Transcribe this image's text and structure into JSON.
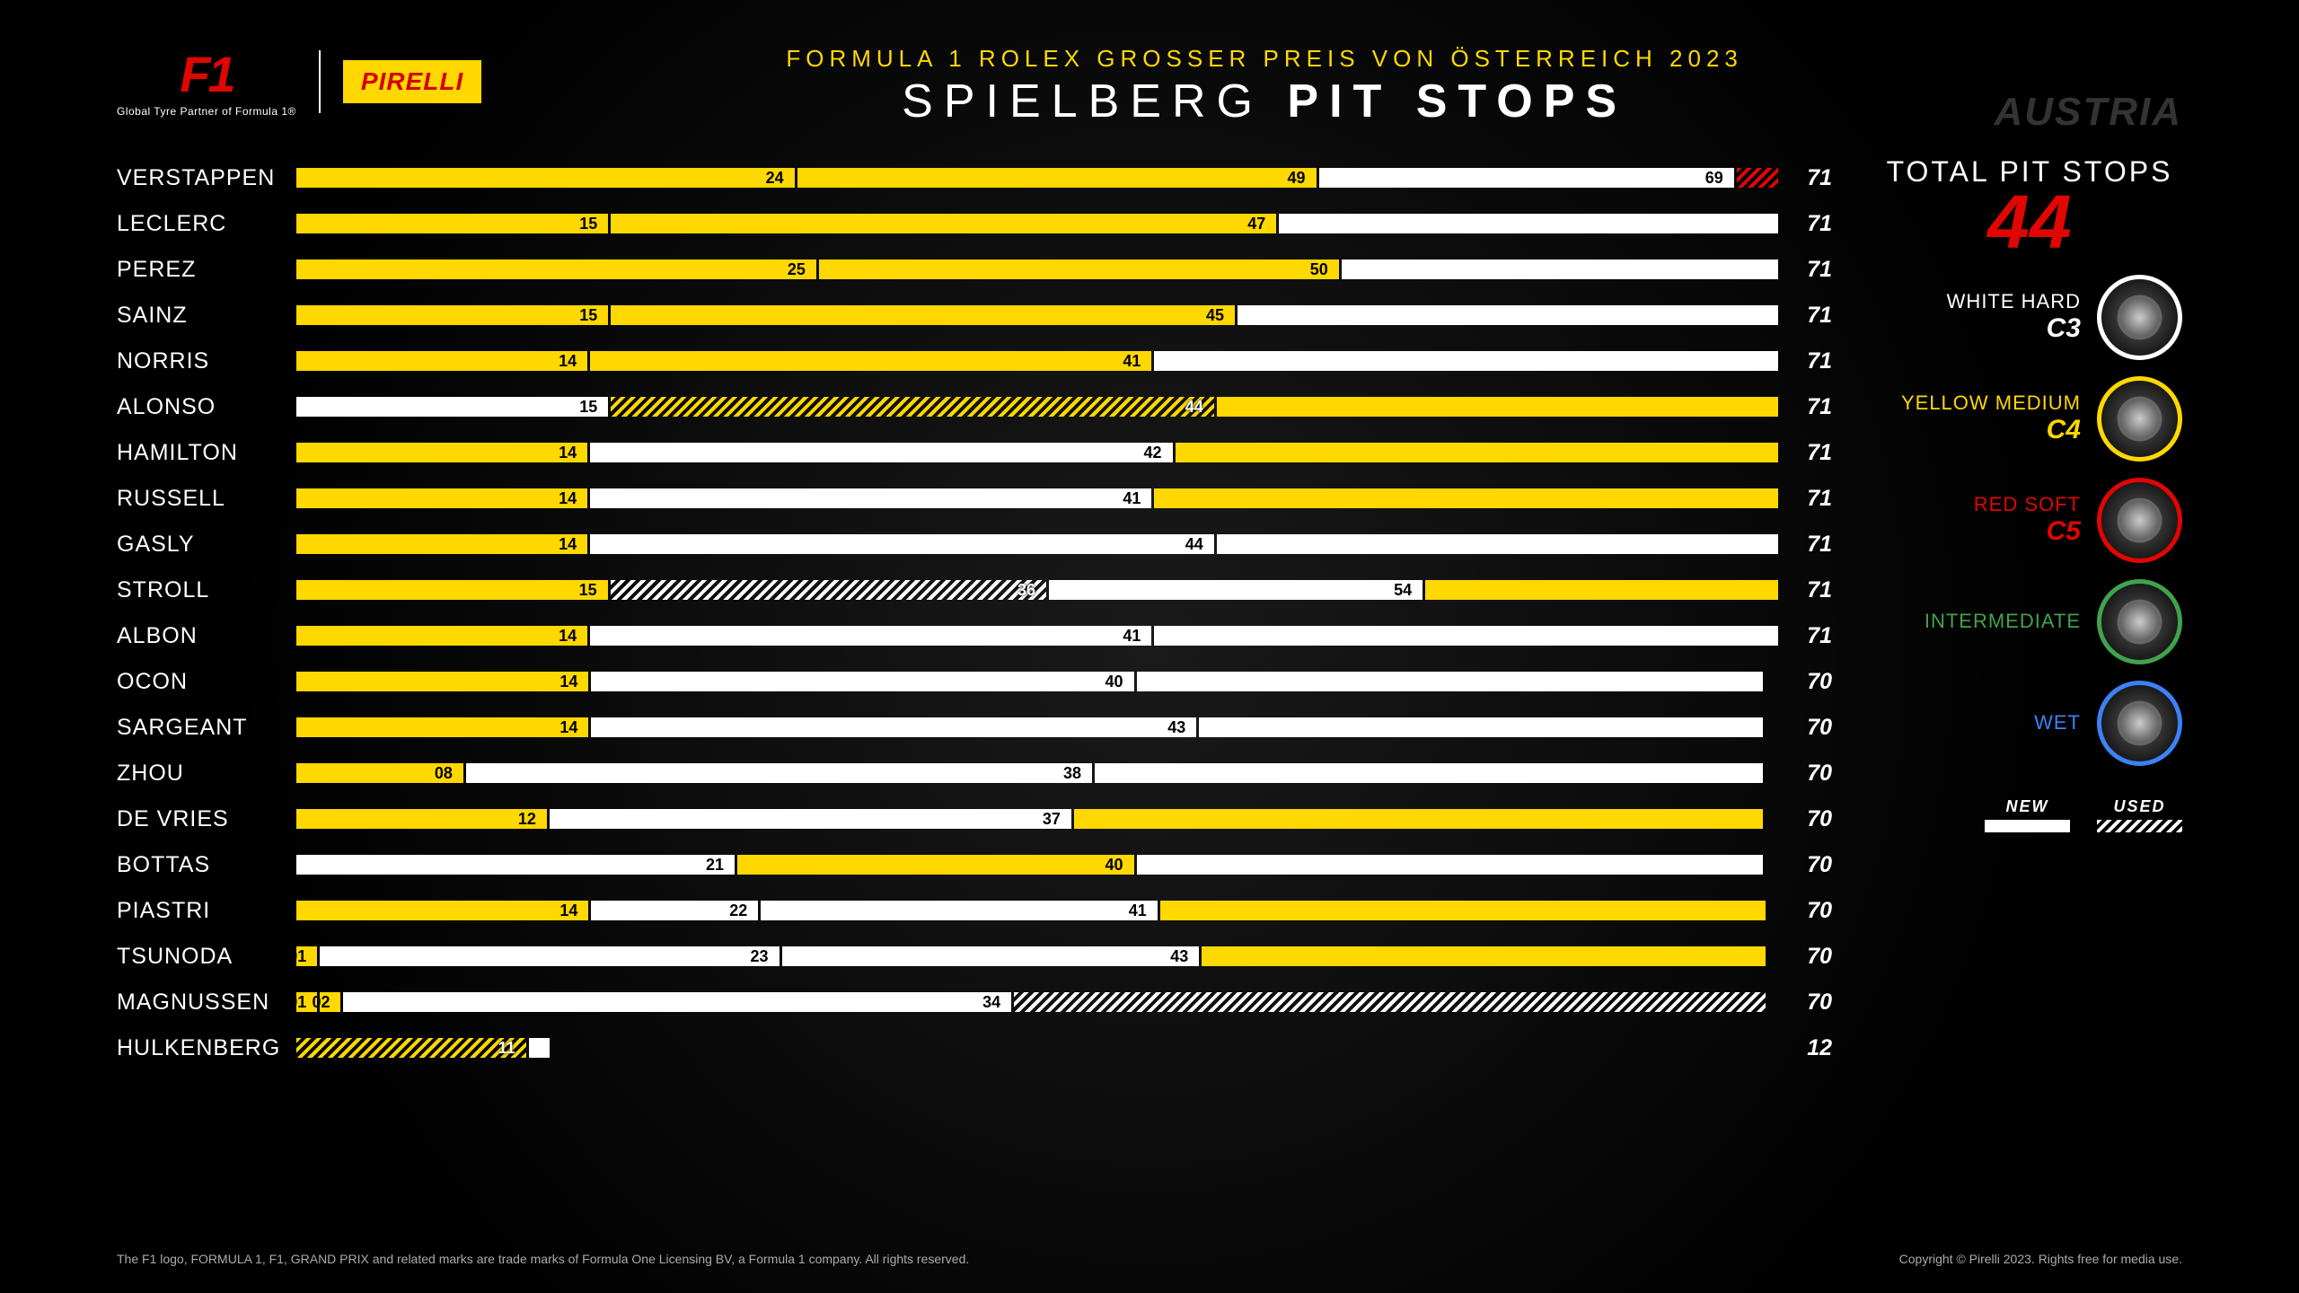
{
  "header": {
    "f1_tagline": "Global Tyre Partner of Formula 1®",
    "pirelli": "IRELLI",
    "event_title": "FORMULA 1 ROLEX GROSSER PREIS VON ÖSTERREICH 2023",
    "main_title_pre": "SPIELBERG ",
    "main_title_bold": "PIT STOPS",
    "country": "AUSTRIA"
  },
  "colors": {
    "medium": "#ffd800",
    "hard": "#ffffff",
    "soft": "#e10600",
    "intermediate": "#3fa34d",
    "wet": "#3b82f6",
    "background": "#000000"
  },
  "chart": {
    "max_laps": 71,
    "drivers": [
      {
        "name": "VERSTAPPEN",
        "total": 71,
        "stints": [
          {
            "compound": "medium",
            "used": false,
            "end": 24
          },
          {
            "compound": "medium",
            "used": false,
            "end": 49
          },
          {
            "compound": "hard",
            "used": false,
            "end": 69
          },
          {
            "compound": "soft",
            "used": true,
            "end": 71,
            "hide_label": true
          }
        ]
      },
      {
        "name": "LECLERC",
        "total": 71,
        "stints": [
          {
            "compound": "medium",
            "used": false,
            "end": 15
          },
          {
            "compound": "medium",
            "used": false,
            "end": 47
          },
          {
            "compound": "hard",
            "used": false,
            "end": 71,
            "hide_label": true
          }
        ]
      },
      {
        "name": "PEREZ",
        "total": 71,
        "stints": [
          {
            "compound": "medium",
            "used": false,
            "end": 25
          },
          {
            "compound": "medium",
            "used": false,
            "end": 50
          },
          {
            "compound": "hard",
            "used": false,
            "end": 71,
            "hide_label": true
          }
        ]
      },
      {
        "name": "SAINZ",
        "total": 71,
        "stints": [
          {
            "compound": "medium",
            "used": false,
            "end": 15
          },
          {
            "compound": "medium",
            "used": false,
            "end": 45
          },
          {
            "compound": "hard",
            "used": false,
            "end": 71,
            "hide_label": true
          }
        ]
      },
      {
        "name": "NORRIS",
        "total": 71,
        "stints": [
          {
            "compound": "medium",
            "used": false,
            "end": 14
          },
          {
            "compound": "medium",
            "used": false,
            "end": 41
          },
          {
            "compound": "hard",
            "used": false,
            "end": 71,
            "hide_label": true
          }
        ]
      },
      {
        "name": "ALONSO",
        "total": 71,
        "stints": [
          {
            "compound": "hard",
            "used": false,
            "end": 15
          },
          {
            "compound": "medium",
            "used": true,
            "end": 44
          },
          {
            "compound": "medium",
            "used": false,
            "end": 71,
            "hide_label": true
          }
        ]
      },
      {
        "name": "HAMILTON",
        "total": 71,
        "stints": [
          {
            "compound": "medium",
            "used": false,
            "end": 14
          },
          {
            "compound": "hard",
            "used": false,
            "end": 42
          },
          {
            "compound": "medium",
            "used": false,
            "end": 71,
            "hide_label": true
          }
        ]
      },
      {
        "name": "RUSSELL",
        "total": 71,
        "stints": [
          {
            "compound": "medium",
            "used": false,
            "end": 14
          },
          {
            "compound": "hard",
            "used": false,
            "end": 41
          },
          {
            "compound": "medium",
            "used": false,
            "end": 71,
            "hide_label": true
          }
        ]
      },
      {
        "name": "GASLY",
        "total": 71,
        "stints": [
          {
            "compound": "medium",
            "used": false,
            "end": 14
          },
          {
            "compound": "hard",
            "used": false,
            "end": 44
          },
          {
            "compound": "hard",
            "used": false,
            "end": 71,
            "hide_label": true
          }
        ]
      },
      {
        "name": "STROLL",
        "total": 71,
        "stints": [
          {
            "compound": "medium",
            "used": false,
            "end": 15
          },
          {
            "compound": "hard",
            "used": true,
            "end": 36
          },
          {
            "compound": "hard",
            "used": false,
            "end": 54
          },
          {
            "compound": "medium",
            "used": false,
            "end": 71,
            "hide_label": true
          }
        ]
      },
      {
        "name": "ALBON",
        "total": 71,
        "stints": [
          {
            "compound": "medium",
            "used": false,
            "end": 14
          },
          {
            "compound": "hard",
            "used": false,
            "end": 41
          },
          {
            "compound": "hard",
            "used": false,
            "end": 71,
            "hide_label": true
          }
        ]
      },
      {
        "name": "OCON",
        "total": 70,
        "stints": [
          {
            "compound": "medium",
            "used": false,
            "end": 14
          },
          {
            "compound": "hard",
            "used": false,
            "end": 40
          },
          {
            "compound": "hard",
            "used": false,
            "end": 70,
            "hide_label": true
          }
        ]
      },
      {
        "name": "SARGEANT",
        "total": 70,
        "stints": [
          {
            "compound": "medium",
            "used": false,
            "end": 14
          },
          {
            "compound": "hard",
            "used": false,
            "end": 43
          },
          {
            "compound": "hard",
            "used": false,
            "end": 70,
            "hide_label": true
          }
        ]
      },
      {
        "name": "ZHOU",
        "total": 70,
        "stints": [
          {
            "compound": "medium",
            "used": false,
            "end": 8,
            "label": "08"
          },
          {
            "compound": "hard",
            "used": false,
            "end": 38
          },
          {
            "compound": "hard",
            "used": false,
            "end": 70,
            "hide_label": true
          }
        ]
      },
      {
        "name": "DE VRIES",
        "total": 70,
        "stints": [
          {
            "compound": "medium",
            "used": false,
            "end": 12
          },
          {
            "compound": "hard",
            "used": false,
            "end": 37
          },
          {
            "compound": "medium",
            "used": false,
            "end": 70,
            "hide_label": true
          }
        ]
      },
      {
        "name": "BOTTAS",
        "total": 70,
        "stints": [
          {
            "compound": "hard",
            "used": false,
            "end": 21
          },
          {
            "compound": "medium",
            "used": false,
            "end": 40
          },
          {
            "compound": "hard",
            "used": false,
            "end": 70,
            "hide_label": true
          }
        ]
      },
      {
        "name": "PIASTRI",
        "total": 70,
        "stints": [
          {
            "compound": "medium",
            "used": false,
            "end": 14
          },
          {
            "compound": "hard",
            "used": false,
            "end": 22
          },
          {
            "compound": "hard",
            "used": false,
            "end": 41
          },
          {
            "compound": "medium",
            "used": false,
            "end": 70,
            "hide_label": true
          }
        ]
      },
      {
        "name": "TSUNODA",
        "total": 70,
        "stints": [
          {
            "compound": "medium",
            "used": false,
            "end": 1,
            "label": "01"
          },
          {
            "compound": "hard",
            "used": false,
            "end": 23
          },
          {
            "compound": "hard",
            "used": false,
            "end": 43
          },
          {
            "compound": "medium",
            "used": false,
            "end": 70,
            "hide_label": true
          }
        ]
      },
      {
        "name": "MAGNUSSEN",
        "total": 70,
        "stints": [
          {
            "compound": "medium",
            "used": false,
            "end": 1,
            "label": "01"
          },
          {
            "compound": "medium",
            "used": false,
            "end": 2,
            "label": "02"
          },
          {
            "compound": "hard",
            "used": false,
            "end": 34
          },
          {
            "compound": "hard",
            "used": true,
            "end": 70,
            "hide_label": true
          }
        ]
      },
      {
        "name": "HULKENBERG",
        "total": 12,
        "stints": [
          {
            "compound": "medium",
            "used": true,
            "end": 11
          },
          {
            "compound": "hard",
            "used": false,
            "end": 12,
            "hide_label": true
          }
        ]
      }
    ]
  },
  "sidebar": {
    "total_label": "TOTAL PIT STOPS",
    "total_value": "44",
    "tyres": [
      {
        "name": "WHITE HARD",
        "code": "C3",
        "name_color": "#ffffff",
        "code_color": "#ffffff",
        "ring": "#ffffff"
      },
      {
        "name": "YELLOW MEDIUM",
        "code": "C4",
        "name_color": "#ffd800",
        "code_color": "#ffd800",
        "ring": "#ffd800"
      },
      {
        "name": "RED SOFT",
        "code": "C5",
        "name_color": "#e10600",
        "code_color": "#e10600",
        "ring": "#e10600"
      },
      {
        "name": "INTERMEDIATE",
        "code": "",
        "name_color": "#3fa34d",
        "code_color": "#3fa34d",
        "ring": "#3fa34d"
      },
      {
        "name": "WET",
        "code": "",
        "name_color": "#3b82f6",
        "code_color": "#3b82f6",
        "ring": "#3b82f6"
      }
    ],
    "new_label": "NEW",
    "used_label": "USED"
  },
  "footer": {
    "left": "The F1 logo, FORMULA 1, F1, GRAND PRIX and related marks are trade marks of Formula One Licensing BV, a Formula 1 company. All rights reserved.",
    "right": "Copyright © Pirelli 2023. Rights free for media use."
  }
}
